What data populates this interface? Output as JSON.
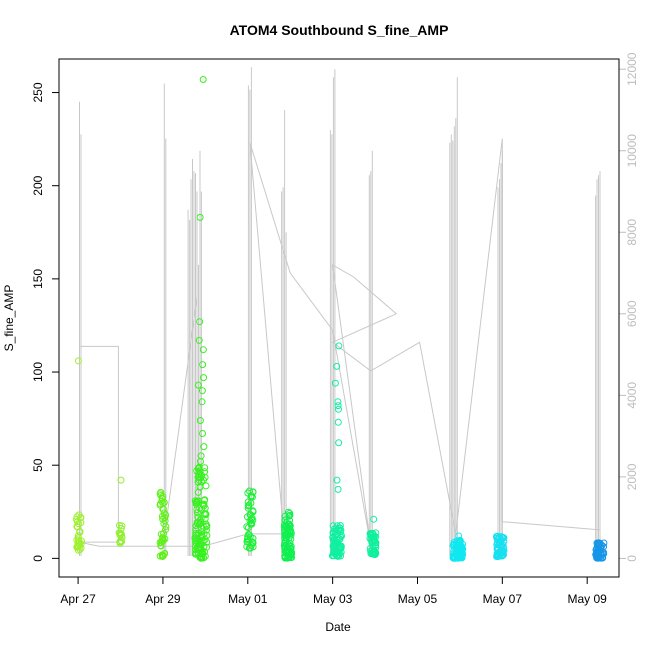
{
  "chart_data": {
    "type": "scatter",
    "title": "ATOM4 Southbound S_fine_AMP",
    "xlabel": "Date",
    "ylabel": "S_fine_AMP",
    "x_tick_labels": [
      "Apr 27",
      "Apr 29",
      "May 01",
      "May 03",
      "May 05",
      "May 07",
      "May 09"
    ],
    "x_ticks_day": [
      0,
      2,
      4,
      6,
      8,
      10,
      12
    ],
    "xlim_day": [
      -0.45,
      12.75
    ],
    "y_ticks": [
      0,
      50,
      100,
      150,
      200,
      250
    ],
    "ylim": [
      -10,
      268
    ],
    "y2_ticks": [
      0,
      2000,
      4000,
      6000,
      8000,
      10000,
      12000
    ],
    "y2lim": [
      -456,
      12250
    ],
    "grid": false,
    "legend": "none",
    "colors": {
      "background_line": "#c8c8c8",
      "secondary_axis": "#bdbdbd",
      "axis": "#000000"
    },
    "clusters": [
      {
        "day": 0.02,
        "spread": 0.06,
        "color": "#9ef030",
        "n": 30,
        "ymin": 4,
        "ymax": 24,
        "extra": [
          106
        ]
      },
      {
        "day": 1.0,
        "spread": 0.04,
        "color": "#90f030",
        "n": 14,
        "ymin": 8,
        "ymax": 18,
        "extra": [
          42
        ]
      },
      {
        "day": 2.0,
        "spread": 0.07,
        "color": "#5ef018",
        "n": 40,
        "ymin": 1,
        "ymax": 36,
        "extra": []
      },
      {
        "day": 2.9,
        "spread": 0.14,
        "color": "#38f020",
        "n": 110,
        "ymin": 0,
        "ymax": 50,
        "extra": [
          52,
          55,
          60,
          67,
          74,
          84,
          90,
          93,
          97,
          104,
          112,
          117,
          127,
          183,
          257
        ]
      },
      {
        "day": 4.05,
        "spread": 0.08,
        "color": "#1ef038",
        "n": 45,
        "ymin": 5,
        "ymax": 37,
        "extra": []
      },
      {
        "day": 4.95,
        "spread": 0.09,
        "color": "#10f050",
        "n": 80,
        "ymin": 0,
        "ymax": 25,
        "extra": []
      },
      {
        "day": 6.1,
        "spread": 0.11,
        "color": "#10f0a0",
        "n": 70,
        "ymin": 1,
        "ymax": 18,
        "extra": [
          37,
          42,
          62,
          73,
          80,
          82,
          84,
          94,
          103,
          114
        ]
      },
      {
        "day": 6.95,
        "spread": 0.07,
        "color": "#10f09c",
        "n": 45,
        "ymin": 2,
        "ymax": 14,
        "extra": [
          21
        ]
      },
      {
        "day": 8.95,
        "spread": 0.12,
        "color": "#10e8f0",
        "n": 80,
        "ymin": 0,
        "ymax": 10,
        "extra": [
          12
        ]
      },
      {
        "day": 9.95,
        "spread": 0.09,
        "color": "#18e0f0",
        "n": 60,
        "ymin": 1,
        "ymax": 12,
        "extra": []
      },
      {
        "day": 12.3,
        "spread": 0.1,
        "color": "#1896e8",
        "n": 60,
        "ymin": 0,
        "ymax": 9,
        "extra": []
      }
    ],
    "secondary_series": {
      "name": "",
      "spikes": [
        {
          "day": 0.05,
          "peaks": [
            11200,
            10400
          ]
        },
        {
          "day": 2.05,
          "peaks": [
            11650,
            10300
          ]
        },
        {
          "day": 2.75,
          "peaks": [
            8550,
            8300,
            9300,
            9800,
            9500,
            9450,
            9000,
            7200,
            10000,
            9000
          ]
        },
        {
          "day": 4.05,
          "peaks": [
            11600,
            11500,
            12050
          ]
        },
        {
          "day": 4.85,
          "peaks": [
            9000,
            9100,
            11000,
            8000
          ]
        },
        {
          "day": 6.0,
          "peaks": [
            10500,
            10400,
            11800,
            12000
          ]
        },
        {
          "day": 6.9,
          "peaks": [
            9400,
            9500,
            10000
          ]
        },
        {
          "day": 8.85,
          "peaks": [
            10200,
            10400,
            10250,
            10600,
            10800,
            11800
          ]
        },
        {
          "day": 9.95,
          "peaks": [
            9100,
            9300,
            9700,
            10000
          ]
        },
        {
          "day": 12.25,
          "peaks": [
            8900,
            9300,
            9400,
            9500
          ]
        }
      ],
      "trend": [
        [
          0.05,
          5200
        ],
        [
          0.95,
          5200
        ],
        [
          0.95,
          400
        ],
        [
          0.02,
          400
        ],
        [
          0.5,
          300
        ],
        [
          2.0,
          300
        ],
        [
          2.8,
          6400
        ],
        [
          2.0,
          300
        ],
        [
          2.95,
          300
        ],
        [
          4.0,
          600
        ],
        [
          4.85,
          600
        ],
        [
          4.05,
          10200
        ],
        [
          5.0,
          7000
        ],
        [
          6.0,
          5600
        ],
        [
          6.9,
          300
        ],
        [
          6.0,
          7200
        ],
        [
          6.5,
          6900
        ],
        [
          7.5,
          6000
        ],
        [
          6.0,
          5300
        ],
        [
          6.9,
          4600
        ],
        [
          8.05,
          5300
        ],
        [
          8.9,
          600
        ],
        [
          10.0,
          10300
        ],
        [
          10.0,
          900
        ],
        [
          12.3,
          700
        ]
      ]
    }
  }
}
